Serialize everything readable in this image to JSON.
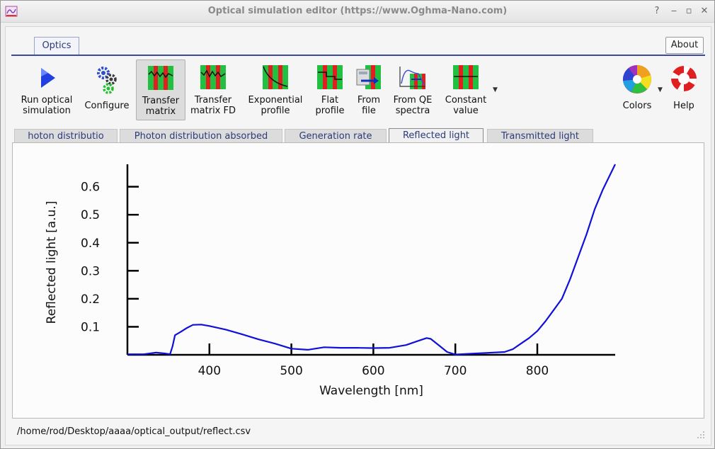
{
  "window": {
    "title": "Optical simulation editor (https://www.Oghma-Nano.com)"
  },
  "ribbon": {
    "tab_label": "Optics",
    "about_label": "About",
    "tools": [
      {
        "label": "Run optical\nsimulation",
        "icon": "play-icon"
      },
      {
        "label": "Configure",
        "icon": "gears-icon"
      },
      {
        "label": "Transfer\nmatrix",
        "icon": "transfer-matrix-icon"
      },
      {
        "label": "Transfer\nmatrix FD",
        "icon": "transfer-matrix-fd-icon"
      },
      {
        "label": "Exponential\nprofile",
        "icon": "exponential-profile-icon"
      },
      {
        "label": "Flat\nprofile",
        "icon": "flat-profile-icon"
      },
      {
        "label": "From\nfile",
        "icon": "from-file-icon"
      },
      {
        "label": "From QE\nspectra",
        "icon": "qe-spectra-icon"
      },
      {
        "label": "Constant\nvalue",
        "icon": "constant-value-icon"
      },
      {
        "label": "Colors",
        "icon": "color-wheel-icon"
      },
      {
        "label": "Help",
        "icon": "lifebuoy-icon"
      }
    ]
  },
  "subtabs": [
    {
      "label": "hoton distributio"
    },
    {
      "label": "Photon distribution absorbed"
    },
    {
      "label": "Generation rate"
    },
    {
      "label": "Reflected light"
    },
    {
      "label": "Transmitted light"
    }
  ],
  "chart_data": {
    "type": "line",
    "xlabel": "Wavelength [nm]",
    "ylabel": "Reflected light [a.u.]",
    "xlim": [
      300,
      895
    ],
    "ylim": [
      0,
      0.68
    ],
    "xticks": [
      400,
      500,
      600,
      700,
      800
    ],
    "yticks": [
      0.1,
      0.2,
      0.3,
      0.4,
      0.5,
      0.6
    ],
    "color": "#1010d8",
    "series": [
      {
        "x": [
          300,
          320,
          335,
          345,
          352,
          355,
          358,
          365,
          372,
          380,
          390,
          400,
          420,
          440,
          460,
          480,
          500,
          520,
          540,
          560,
          580,
          600,
          620,
          640,
          655,
          665,
          670,
          680,
          690,
          700,
          720,
          740,
          760,
          770,
          780,
          790,
          800,
          810,
          820,
          830,
          840,
          850,
          860,
          870,
          880,
          890,
          895
        ],
        "y": [
          0.002,
          0.002,
          0.008,
          0.005,
          0.002,
          0.03,
          0.07,
          0.082,
          0.095,
          0.107,
          0.108,
          0.103,
          0.09,
          0.073,
          0.055,
          0.04,
          0.022,
          0.018,
          0.027,
          0.025,
          0.025,
          0.024,
          0.025,
          0.035,
          0.05,
          0.06,
          0.057,
          0.034,
          0.01,
          0.001,
          0.004,
          0.007,
          0.01,
          0.02,
          0.04,
          0.06,
          0.085,
          0.12,
          0.16,
          0.2,
          0.27,
          0.35,
          0.43,
          0.52,
          0.59,
          0.65,
          0.68
        ]
      }
    ]
  },
  "status": {
    "path": "/home/rod/Desktop/aaaa/optical_output/reflect.csv"
  }
}
